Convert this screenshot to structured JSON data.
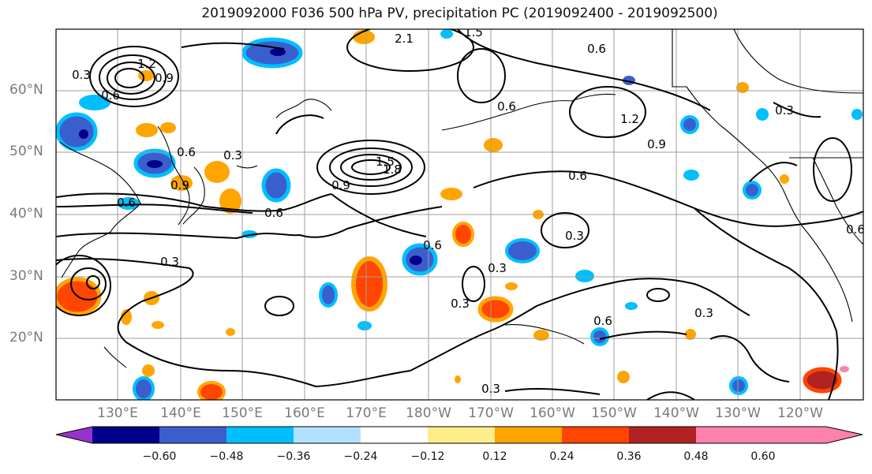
{
  "title": "2019092000 F036 500 hPa PV, precipitation PC (2019092400 - 2019092500)",
  "lat_labels": [
    "60°N",
    "50°N",
    "40°N",
    "30°N",
    "20°N"
  ],
  "lon_labels": [
    "130°E",
    "140°E",
    "150°E",
    "160°E",
    "170°E",
    "180°W",
    "170°W",
    "160°W",
    "150°W",
    "140°W",
    "130°W",
    "120°W"
  ],
  "colorbar": {
    "ticks": [
      "−0.60",
      "−0.48",
      "−0.36",
      "−0.24",
      "−0.12",
      "0.12",
      "0.24",
      "0.36",
      "0.48",
      "0.60"
    ],
    "colors": [
      "#9932cc",
      "#00008b",
      "#3a5fcd",
      "#00bfff",
      "#b0e2ff",
      "#ffffff",
      "#ffec8b",
      "#ffa500",
      "#ff4500",
      "#b22222",
      "#ff82ab"
    ]
  },
  "contour_labels": [
    "0.3",
    "0.6",
    "0.9",
    "1.2",
    "1.5",
    "1.8",
    "2.1",
    "0.3",
    "0.6",
    "0.9",
    "0.6",
    "0.3",
    "0.6",
    "0.3",
    "0.3",
    "0.6",
    "0.3",
    "0.3",
    "0.6",
    "0.9",
    "1.2",
    "0.6",
    "0.3",
    "0.6",
    "1.5",
    "0.6",
    "0.9",
    "0.3",
    "0.6"
  ]
}
